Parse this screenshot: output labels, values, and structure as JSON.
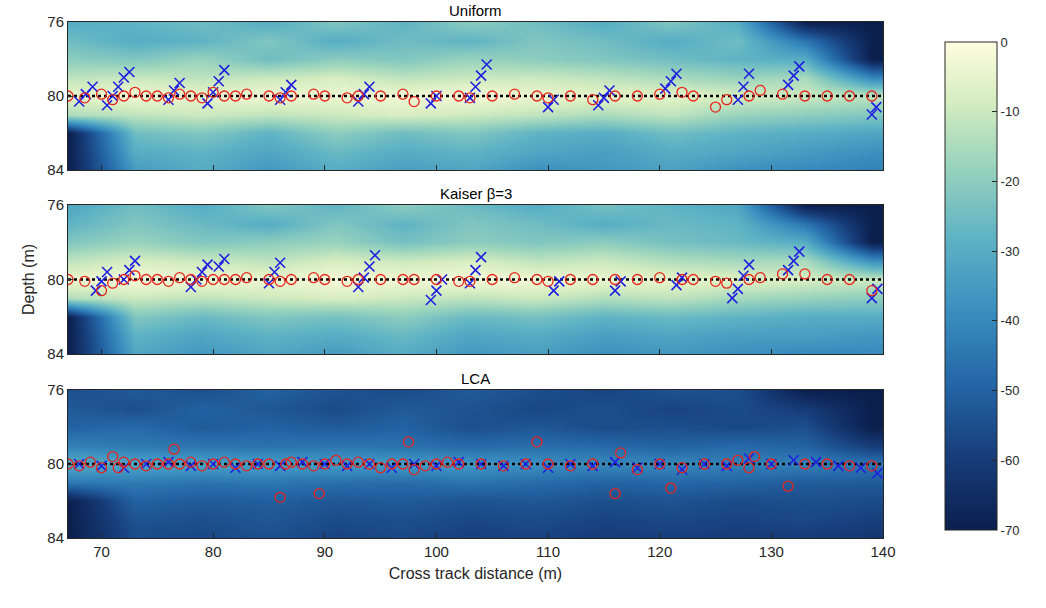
{
  "chart_data": [
    {
      "type": "heatmap",
      "title": "Uniform",
      "cell_x": [
        67,
        73,
        79,
        85,
        91,
        97,
        103,
        109,
        115,
        121,
        127,
        133,
        139
      ],
      "cell_y": [
        76,
        77,
        78,
        79,
        80,
        81,
        82,
        83,
        84
      ],
      "cells": [
        [
          -30,
          -28,
          -25,
          -30,
          -22,
          -28,
          -20,
          -25,
          -30,
          -22,
          -30,
          -70,
          -70
        ],
        [
          -25,
          -30,
          -28,
          -22,
          -30,
          -25,
          -28,
          -22,
          -25,
          -30,
          -25,
          -45,
          -70
        ],
        [
          -20,
          -22,
          -18,
          -25,
          -20,
          -22,
          -18,
          -20,
          -22,
          -25,
          -28,
          -30,
          -70
        ],
        [
          -12,
          -10,
          -12,
          -10,
          -8,
          -12,
          -10,
          -10,
          -12,
          -15,
          -18,
          -15,
          -40
        ],
        [
          -5,
          -3,
          -5,
          -3,
          -4,
          -3,
          -2,
          -4,
          -5,
          -6,
          -8,
          -10,
          -12
        ],
        [
          -15,
          -12,
          -10,
          -12,
          -10,
          -8,
          -10,
          -12,
          -15,
          -12,
          -18,
          -20,
          -22
        ],
        [
          -70,
          -25,
          -22,
          -28,
          -20,
          -25,
          -22,
          -28,
          -30,
          -25,
          -28,
          -30,
          -32
        ],
        [
          -70,
          -30,
          -28,
          -32,
          -26,
          -30,
          -28,
          -32,
          -34,
          -30,
          -32,
          -35,
          -38
        ],
        [
          -70,
          -35,
          -30,
          -36,
          -30,
          -34,
          -32,
          -38,
          -36,
          -33,
          -38,
          -40,
          -42
        ]
      ],
      "zlim": [
        -70,
        0
      ],
      "zticks": [
        0,
        -10,
        -20,
        -30,
        -40,
        -50,
        -60,
        -70
      ],
      "xlim": [
        67,
        140
      ],
      "xticks": [
        70,
        80,
        90,
        100,
        110,
        120,
        130,
        140
      ],
      "ylim": [
        84,
        76
      ],
      "yticks": [
        76,
        80,
        84
      ],
      "tick_labels": "y",
      "series": [
        {
          "type": "line",
          "color": "#000000",
          "line_style": "dotted",
          "x": [
            67,
            140
          ],
          "y": [
            80,
            80
          ]
        },
        {
          "type": "scatter",
          "color": "#1f1fe0",
          "marker": "x",
          "x": [
            68,
            68.6,
            69.2,
            70.5,
            71,
            71.5,
            72,
            72.5,
            76,
            76.5,
            77,
            79.5,
            80,
            80.5,
            81,
            86,
            86.5,
            87,
            93,
            93.5,
            94,
            99.5,
            100,
            103,
            103.5,
            104,
            104.5,
            110,
            110.5,
            114.5,
            115,
            115.5,
            120.5,
            121,
            121.5,
            127,
            127.5,
            128,
            131.5,
            132,
            132.5,
            139,
            139.4
          ],
          "y": [
            80.3,
            79.9,
            79.5,
            80.5,
            80,
            79.5,
            79,
            78.7,
            80.2,
            79.7,
            79.3,
            80.4,
            79.8,
            79.2,
            78.6,
            80.2,
            79.8,
            79.4,
            80.3,
            79.9,
            79.5,
            80.4,
            80,
            80.1,
            79.5,
            78.9,
            78.3,
            80.6,
            80.2,
            80.5,
            80.1,
            79.7,
            79.6,
            79.2,
            78.8,
            80.2,
            79.5,
            78.8,
            79.4,
            78.9,
            78.4,
            81,
            80.6
          ]
        },
        {
          "type": "scatter",
          "color": "#e8261e",
          "marker": "circle-open",
          "x": [
            67,
            68.5,
            70,
            71,
            72,
            73,
            74,
            75,
            76,
            77,
            78,
            79,
            80,
            81,
            82,
            83,
            85,
            86,
            87,
            89,
            90,
            92,
            93,
            95,
            97,
            98,
            100,
            102,
            103,
            105,
            107,
            109,
            110,
            112,
            114,
            116,
            118,
            120,
            122,
            123,
            125,
            126,
            128,
            129,
            131,
            133,
            135,
            137,
            139
          ],
          "y": [
            80,
            80.1,
            79.9,
            80.2,
            80,
            79.8,
            80,
            80,
            80.1,
            79.9,
            80,
            80.1,
            79.8,
            80,
            80,
            79.9,
            80,
            80.1,
            80,
            79.9,
            80,
            80.1,
            80,
            80,
            79.9,
            80.3,
            80,
            80,
            80.1,
            80,
            79.9,
            80,
            80.1,
            80,
            80.2,
            80,
            80,
            79.9,
            79.8,
            80,
            80.6,
            80.2,
            80,
            79.7,
            79.9,
            80,
            80,
            80,
            80
          ]
        }
      ]
    },
    {
      "type": "heatmap",
      "title": "Kaiser β=3",
      "ylabel": "Depth (m)",
      "cell_x": [
        67,
        73,
        79,
        85,
        91,
        97,
        103,
        109,
        115,
        121,
        127,
        133,
        139
      ],
      "cell_y": [
        76,
        77,
        78,
        79,
        80,
        81,
        82,
        83,
        84
      ],
      "cells": [
        [
          -32,
          -25,
          -30,
          -22,
          -28,
          -20,
          -26,
          -30,
          -24,
          -28,
          -32,
          -70,
          -70
        ],
        [
          -28,
          -22,
          -26,
          -30,
          -22,
          -28,
          -22,
          -25,
          -30,
          -26,
          -28,
          -45,
          -70
        ],
        [
          -22,
          -18,
          -22,
          -20,
          -18,
          -24,
          -20,
          -22,
          -20,
          -24,
          -26,
          -30,
          -70
        ],
        [
          -12,
          -8,
          -10,
          -12,
          -8,
          -10,
          -8,
          -12,
          -10,
          -14,
          -16,
          -15,
          -38
        ],
        [
          -4,
          -2,
          -3,
          -4,
          -2,
          -3,
          -2,
          -3,
          -4,
          -5,
          -6,
          -8,
          -10
        ],
        [
          -14,
          -10,
          -12,
          -10,
          -8,
          -10,
          -12,
          -10,
          -14,
          -12,
          -16,
          -18,
          -20
        ],
        [
          -70,
          -22,
          -26,
          -22,
          -24,
          -20,
          -26,
          -24,
          -28,
          -26,
          -28,
          -30,
          -30
        ],
        [
          -70,
          -28,
          -32,
          -28,
          -30,
          -26,
          -32,
          -30,
          -34,
          -32,
          -34,
          -34,
          -36
        ],
        [
          -70,
          -32,
          -36,
          -32,
          -35,
          -30,
          -36,
          -34,
          -38,
          -36,
          -38,
          -40,
          -40
        ]
      ],
      "zlim": [
        -70,
        0
      ],
      "xlim": [
        67,
        140
      ],
      "xticks": [
        70,
        80,
        90,
        100,
        110,
        120,
        130,
        140
      ],
      "ylim": [
        84,
        76
      ],
      "yticks": [
        76,
        80,
        84
      ],
      "tick_labels": "y",
      "series": [
        {
          "type": "line",
          "color": "#000000",
          "line_style": "dotted",
          "x": [
            67,
            140
          ],
          "y": [
            80,
            80
          ]
        },
        {
          "type": "scatter",
          "color": "#1f1fe0",
          "marker": "x",
          "x": [
            69.5,
            70,
            70.5,
            72,
            72.5,
            73,
            78,
            78.5,
            79,
            79.5,
            80.5,
            81,
            85,
            85.5,
            86,
            93,
            93.5,
            94,
            94.5,
            99.5,
            100,
            100.5,
            103,
            103.5,
            104,
            110.5,
            111,
            116,
            116.5,
            121.5,
            122,
            126.5,
            127,
            127.5,
            128,
            131.5,
            132,
            132.5,
            139,
            139.5
          ],
          "y": [
            80.6,
            80.1,
            79.6,
            80,
            79.5,
            79,
            80.4,
            80,
            79.6,
            79.2,
            79.3,
            78.9,
            80.2,
            79.6,
            79.1,
            80.4,
            79.9,
            79.3,
            78.7,
            81.1,
            80.6,
            80,
            80.2,
            79.5,
            78.8,
            80.6,
            80.1,
            80.6,
            80.1,
            80.3,
            79.9,
            81,
            80.5,
            79.8,
            79.2,
            79.5,
            79,
            78.5,
            81,
            80.5
          ]
        },
        {
          "type": "scatter",
          "color": "#e8261e",
          "marker": "circle-open",
          "x": [
            67,
            68.5,
            70,
            71,
            72,
            73,
            74,
            75,
            76,
            77,
            78,
            79,
            80,
            81,
            82,
            83,
            85,
            86,
            87,
            89,
            90,
            92,
            93,
            95,
            97,
            98,
            100,
            102,
            103,
            105,
            107,
            109,
            110,
            112,
            114,
            116,
            118,
            120,
            122,
            123,
            125,
            126,
            128,
            129,
            131,
            133,
            135,
            137,
            139
          ],
          "y": [
            80,
            80.1,
            80.6,
            80.2,
            80,
            79.8,
            80,
            80,
            80.1,
            79.9,
            80,
            80.1,
            80,
            80,
            80,
            79.9,
            80,
            80.1,
            80,
            79.9,
            80,
            80.1,
            80,
            80,
            80,
            80,
            80,
            80.1,
            80.1,
            80,
            79.9,
            80,
            80.1,
            80,
            80,
            80,
            80,
            79.9,
            80,
            80,
            80.1,
            80.2,
            80,
            79.9,
            79.7,
            79.7,
            80,
            80,
            80.6
          ]
        }
      ]
    },
    {
      "type": "heatmap",
      "title": "LCA",
      "xlabel": "Cross track distance (m)",
      "cell_x": [
        67,
        73,
        79,
        85,
        91,
        97,
        103,
        109,
        115,
        121,
        127,
        133,
        139
      ],
      "cell_y": [
        76,
        77,
        78,
        79,
        80,
        81,
        82,
        83,
        84
      ],
      "cells": [
        [
          -55,
          -52,
          -55,
          -50,
          -54,
          -56,
          -52,
          -55,
          -58,
          -54,
          -55,
          -70,
          -70
        ],
        [
          -52,
          -55,
          -50,
          -53,
          -56,
          -52,
          -54,
          -57,
          -55,
          -58,
          -56,
          -60,
          -70
        ],
        [
          -50,
          -48,
          -52,
          -50,
          -52,
          -50,
          -55,
          -53,
          -56,
          -55,
          -57,
          -55,
          -70
        ],
        [
          -42,
          -44,
          -45,
          -46,
          -45,
          -46,
          -48,
          -47,
          -48,
          -50,
          -48,
          -50,
          -60
        ],
        [
          -30,
          -32,
          -33,
          -34,
          -35,
          -35,
          -36,
          -38,
          -40,
          -40,
          -42,
          -42,
          -45
        ],
        [
          -45,
          -44,
          -46,
          -45,
          -47,
          -48,
          -46,
          -48,
          -50,
          -49,
          -50,
          -52,
          -52
        ],
        [
          -70,
          -50,
          -52,
          -51,
          -53,
          -52,
          -54,
          -53,
          -55,
          -54,
          -56,
          -55,
          -56
        ],
        [
          -70,
          -54,
          -55,
          -53,
          -56,
          -55,
          -57,
          -56,
          -58,
          -57,
          -58,
          -57,
          -59
        ],
        [
          -70,
          -56,
          -57,
          -55,
          -58,
          -57,
          -59,
          -58,
          -60,
          -59,
          -60,
          -60,
          -62
        ]
      ],
      "zlim": [
        -70,
        0
      ],
      "xlim": [
        67,
        140
      ],
      "xticks": [
        70,
        80,
        90,
        100,
        110,
        120,
        130,
        140
      ],
      "ylim": [
        84,
        76
      ],
      "yticks": [
        76,
        80,
        84
      ],
      "series": [
        {
          "type": "line",
          "color": "#000000",
          "line_style": "dotted",
          "x": [
            67,
            140
          ],
          "y": [
            80,
            80
          ]
        },
        {
          "type": "scatter",
          "color": "#1f1fe0",
          "marker": "x",
          "x": [
            68,
            70,
            72,
            74,
            76,
            78,
            80,
            82,
            84,
            86,
            88,
            90,
            92,
            94,
            96,
            98,
            100,
            102,
            104,
            106,
            108,
            110,
            112,
            114,
            116,
            118,
            120,
            122,
            124,
            126,
            128,
            130,
            132,
            134,
            136,
            138,
            139.5
          ],
          "y": [
            80,
            80.1,
            80.2,
            80,
            79.9,
            80.1,
            80,
            80.2,
            80,
            80.1,
            79.9,
            80,
            80.1,
            80,
            80.2,
            80,
            80.1,
            79.9,
            80,
            80.1,
            80,
            80.2,
            80,
            80.1,
            79.9,
            80.2,
            80,
            80.3,
            80,
            80.1,
            79.7,
            80,
            79.8,
            79.9,
            80.1,
            80.2,
            80.5
          ]
        },
        {
          "type": "scatter",
          "color": "#e8261e",
          "marker": "circle-open",
          "x": [
            67,
            68,
            69,
            70,
            71,
            71.5,
            72,
            73,
            74,
            75,
            76,
            76.5,
            77,
            78,
            79,
            80,
            81,
            82,
            83,
            84,
            85,
            86,
            86.5,
            87,
            88,
            89,
            89.5,
            90,
            91,
            92,
            93,
            94,
            95,
            96,
            97,
            97.5,
            98,
            99,
            100,
            101,
            102,
            104,
            106,
            108,
            109,
            110,
            112,
            114,
            116,
            116.5,
            118,
            120,
            121,
            122,
            124,
            126,
            127,
            128,
            128.5,
            130,
            131.5,
            133,
            135,
            137,
            139
          ],
          "y": [
            80,
            80.1,
            79.9,
            80.2,
            79.6,
            80.2,
            79.9,
            80,
            80.1,
            80,
            80,
            79.2,
            80,
            79.9,
            80.1,
            80,
            79.9,
            80,
            80.1,
            80,
            80,
            81.8,
            80,
            79.9,
            80,
            80.1,
            81.6,
            80,
            79.8,
            80,
            79.9,
            80,
            80.2,
            80,
            80,
            78.8,
            80.3,
            80.1,
            80,
            79.9,
            80,
            80,
            80.1,
            80,
            78.8,
            80,
            80.1,
            80,
            81.6,
            79.4,
            80.3,
            80,
            81.3,
            80.2,
            80,
            80,
            79.8,
            80.2,
            79.6,
            80,
            81.2,
            80,
            80,
            80.1,
            80.1
          ]
        }
      ]
    }
  ]
}
